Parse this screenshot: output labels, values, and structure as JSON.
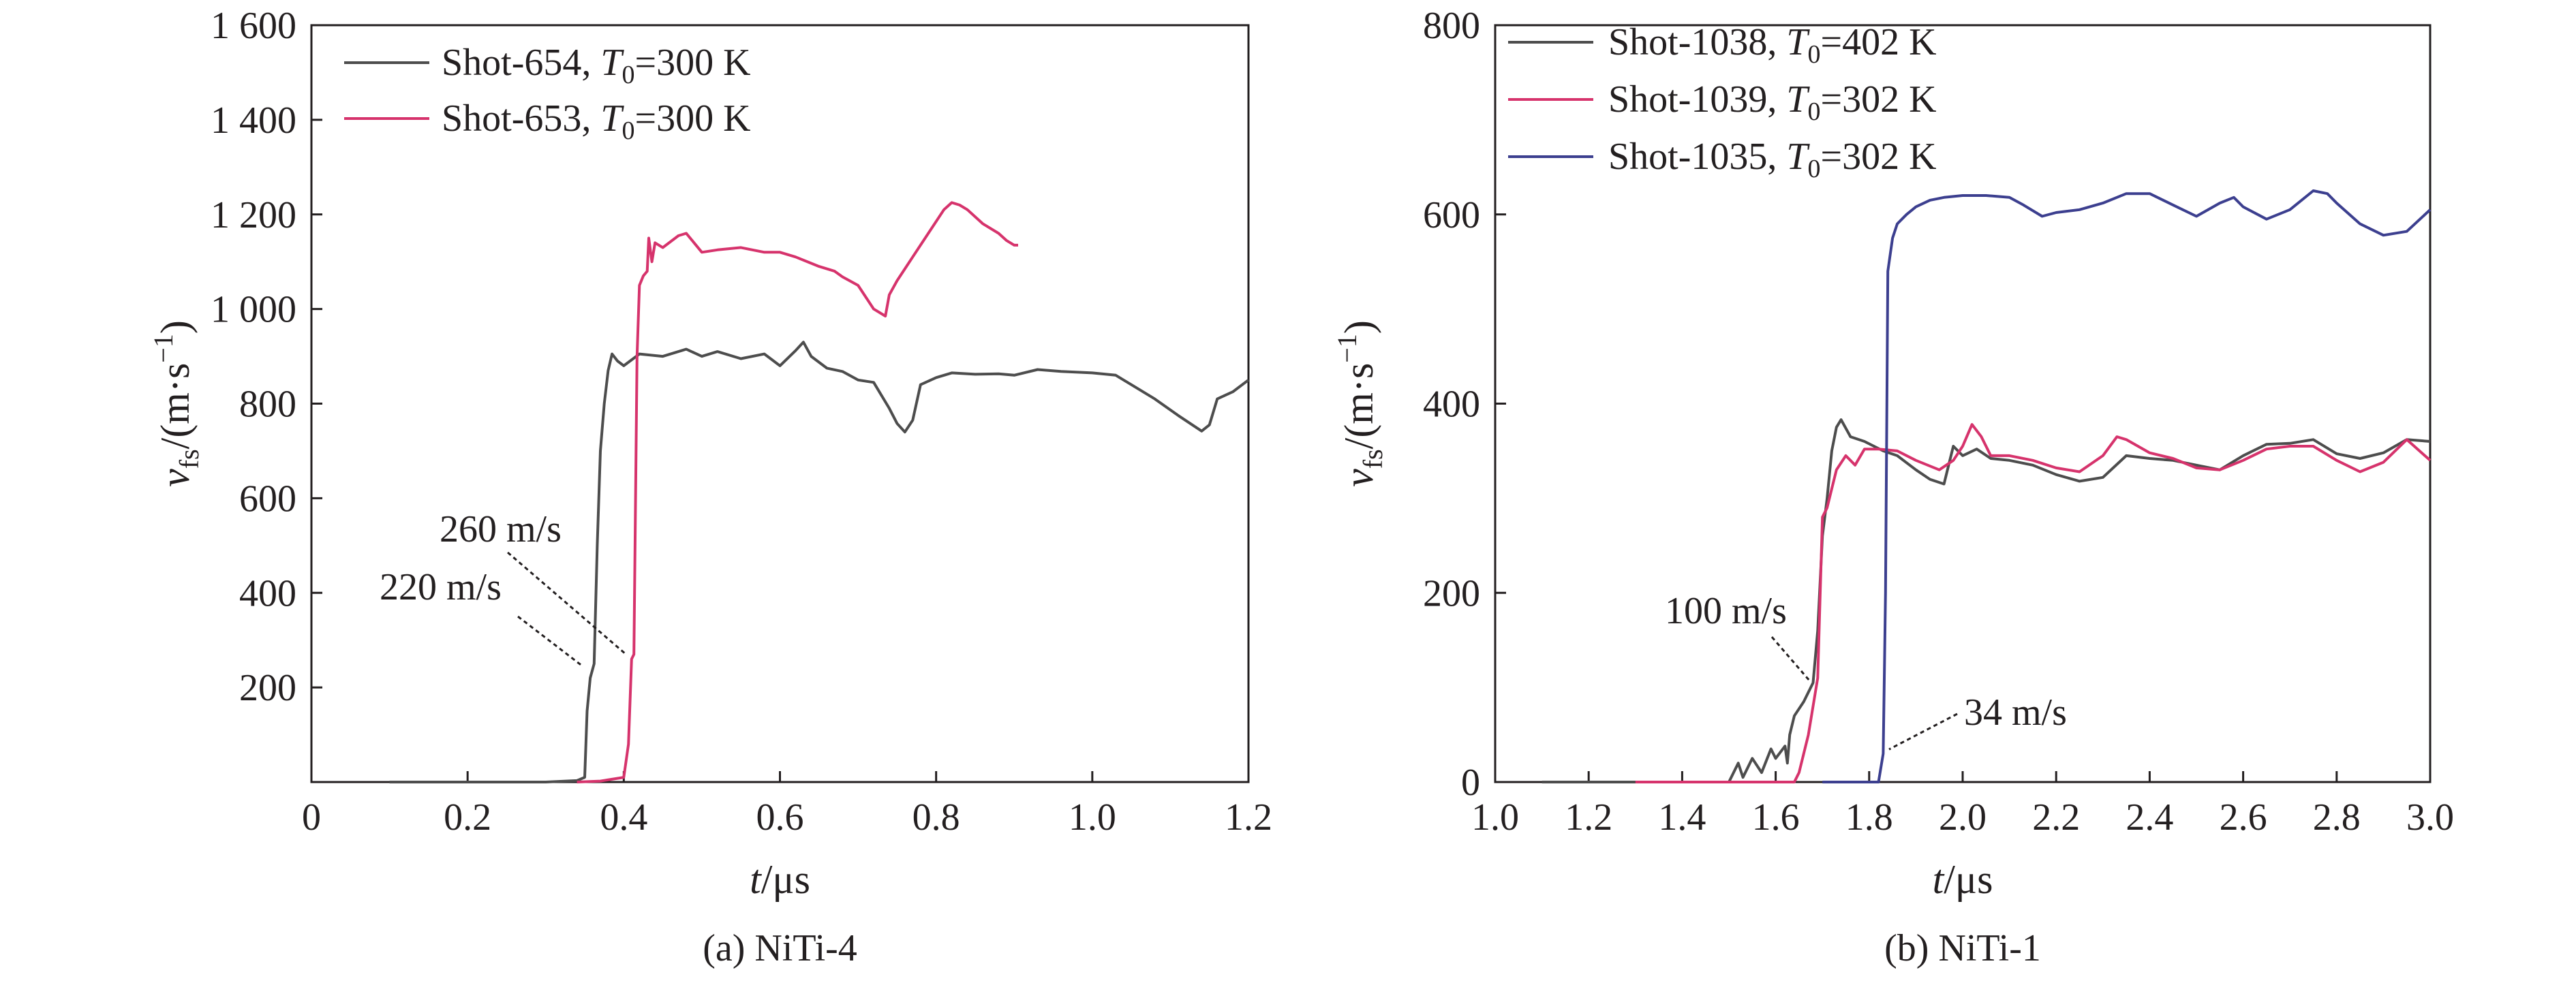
{
  "chart_data": [
    {
      "type": "line",
      "caption": "(a) NiTi-4",
      "xlabel": "t/μs",
      "ylabel": "v_fs/(m·s⁻¹)",
      "xlim": [
        0,
        1.2
      ],
      "ylim": [
        0,
        1600
      ],
      "xticks": [
        0,
        0.2,
        0.4,
        0.6,
        0.8,
        1.0,
        1.2
      ],
      "xtick_labels": [
        "0",
        "0.2",
        "0.4",
        "0.6",
        "0.8",
        "1.0",
        "1.2"
      ],
      "yticks": [
        200,
        400,
        600,
        800,
        1000,
        1200,
        1400,
        1600
      ],
      "ytick_labels": [
        "200",
        "400",
        "600",
        "800",
        "1 000",
        "1 200",
        "1 400",
        "1 600"
      ],
      "legend_position": "top-left",
      "series": [
        {
          "name": "Shot-654, T0=300 K",
          "legend_prefix": "Shot-654, ",
          "legend_var": "T",
          "legend_sub": "0",
          "legend_suffix": "=300 K",
          "color": "#4d4d4d",
          "points": [
            [
              0.1,
              0
            ],
            [
              0.2,
              0
            ],
            [
              0.3,
              0
            ],
            [
              0.34,
              3
            ],
            [
              0.35,
              10
            ],
            [
              0.353,
              150
            ],
            [
              0.357,
              220
            ],
            [
              0.362,
              250
            ],
            [
              0.366,
              500
            ],
            [
              0.37,
              700
            ],
            [
              0.375,
              800
            ],
            [
              0.38,
              870
            ],
            [
              0.385,
              905
            ],
            [
              0.392,
              890
            ],
            [
              0.4,
              880
            ],
            [
              0.42,
              905
            ],
            [
              0.45,
              900
            ],
            [
              0.48,
              915
            ],
            [
              0.5,
              900
            ],
            [
              0.52,
              910
            ],
            [
              0.55,
              895
            ],
            [
              0.58,
              905
            ],
            [
              0.6,
              880
            ],
            [
              0.62,
              912
            ],
            [
              0.63,
              930
            ],
            [
              0.64,
              900
            ],
            [
              0.66,
              875
            ],
            [
              0.68,
              868
            ],
            [
              0.7,
              850
            ],
            [
              0.72,
              845
            ],
            [
              0.74,
              790
            ],
            [
              0.75,
              758
            ],
            [
              0.76,
              740
            ],
            [
              0.77,
              765
            ],
            [
              0.78,
              840
            ],
            [
              0.8,
              855
            ],
            [
              0.82,
              865
            ],
            [
              0.85,
              862
            ],
            [
              0.88,
              863
            ],
            [
              0.9,
              860
            ],
            [
              0.93,
              872
            ],
            [
              0.96,
              868
            ],
            [
              1.0,
              865
            ],
            [
              1.03,
              860
            ],
            [
              1.05,
              840
            ],
            [
              1.08,
              810
            ],
            [
              1.11,
              775
            ],
            [
              1.14,
              742
            ],
            [
              1.15,
              755
            ],
            [
              1.16,
              810
            ],
            [
              1.18,
              825
            ],
            [
              1.2,
              850
            ]
          ]
        },
        {
          "name": "Shot-653, T0=300 K",
          "legend_prefix": "Shot-653, ",
          "legend_var": "T",
          "legend_sub": "0",
          "legend_suffix": "=300 K",
          "color": "#d6336c",
          "points": [
            [
              0.34,
              0
            ],
            [
              0.37,
              2
            ],
            [
              0.4,
              10
            ],
            [
              0.406,
              80
            ],
            [
              0.41,
              260
            ],
            [
              0.413,
              270
            ],
            [
              0.417,
              900
            ],
            [
              0.42,
              1050
            ],
            [
              0.425,
              1070
            ],
            [
              0.43,
              1080
            ],
            [
              0.432,
              1150
            ],
            [
              0.436,
              1100
            ],
            [
              0.44,
              1140
            ],
            [
              0.45,
              1130
            ],
            [
              0.47,
              1155
            ],
            [
              0.48,
              1160
            ],
            [
              0.5,
              1120
            ],
            [
              0.52,
              1125
            ],
            [
              0.55,
              1130
            ],
            [
              0.58,
              1120
            ],
            [
              0.6,
              1120
            ],
            [
              0.62,
              1110
            ],
            [
              0.65,
              1090
            ],
            [
              0.67,
              1080
            ],
            [
              0.68,
              1068
            ],
            [
              0.7,
              1050
            ],
            [
              0.72,
              1000
            ],
            [
              0.735,
              985
            ],
            [
              0.74,
              1030
            ],
            [
              0.75,
              1060
            ],
            [
              0.77,
              1110
            ],
            [
              0.79,
              1160
            ],
            [
              0.81,
              1210
            ],
            [
              0.82,
              1225
            ],
            [
              0.83,
              1220
            ],
            [
              0.84,
              1210
            ],
            [
              0.86,
              1180
            ],
            [
              0.88,
              1160
            ],
            [
              0.89,
              1145
            ],
            [
              0.9,
              1135
            ],
            [
              0.905,
              1135
            ]
          ]
        }
      ],
      "annotations": [
        {
          "text": "260 m/s",
          "x": 0.41,
          "y": 265
        },
        {
          "text": "220 m/s",
          "x": 0.355,
          "y": 235
        }
      ]
    },
    {
      "type": "line",
      "caption": "(b) NiTi-1",
      "xlabel": "t/μs",
      "ylabel": "v_fs/(m·s⁻¹)",
      "xlim": [
        1.0,
        3.0
      ],
      "ylim": [
        0,
        800
      ],
      "xticks": [
        1.0,
        1.2,
        1.4,
        1.6,
        1.8,
        2.0,
        2.2,
        2.4,
        2.6,
        2.8,
        3.0
      ],
      "xtick_labels": [
        "1.0",
        "1.2",
        "1.4",
        "1.6",
        "1.8",
        "2.0",
        "2.2",
        "2.4",
        "2.6",
        "2.8",
        "3.0"
      ],
      "yticks": [
        0,
        200,
        400,
        600,
        800
      ],
      "ytick_labels": [
        "0",
        "200",
        "400",
        "600",
        "800"
      ],
      "legend_position": "top-left",
      "series": [
        {
          "name": "Shot-1038, T0=402 K",
          "legend_prefix": "Shot-1038, ",
          "legend_var": "T",
          "legend_sub": "0",
          "legend_suffix": "=402 K",
          "color": "#4d4d4d",
          "points": [
            [
              1.1,
              0
            ],
            [
              1.3,
              0
            ],
            [
              1.5,
              0
            ],
            [
              1.52,
              20
            ],
            [
              1.53,
              5
            ],
            [
              1.55,
              25
            ],
            [
              1.57,
              10
            ],
            [
              1.59,
              35
            ],
            [
              1.6,
              25
            ],
            [
              1.62,
              38
            ],
            [
              1.625,
              20
            ],
            [
              1.63,
              50
            ],
            [
              1.64,
              70
            ],
            [
              1.66,
              85
            ],
            [
              1.68,
              105
            ],
            [
              1.69,
              160
            ],
            [
              1.7,
              260
            ],
            [
              1.71,
              300
            ],
            [
              1.72,
              350
            ],
            [
              1.73,
              375
            ],
            [
              1.74,
              383
            ],
            [
              1.76,
              365
            ],
            [
              1.79,
              360
            ],
            [
              1.83,
              350
            ],
            [
              1.86,
              345
            ],
            [
              1.9,
              330
            ],
            [
              1.93,
              320
            ],
            [
              1.96,
              315
            ],
            [
              1.98,
              355
            ],
            [
              2.0,
              345
            ],
            [
              2.03,
              352
            ],
            [
              2.06,
              342
            ],
            [
              2.1,
              340
            ],
            [
              2.15,
              335
            ],
            [
              2.2,
              325
            ],
            [
              2.25,
              318
            ],
            [
              2.3,
              322
            ],
            [
              2.35,
              345
            ],
            [
              2.4,
              342
            ],
            [
              2.45,
              340
            ],
            [
              2.5,
              335
            ],
            [
              2.55,
              330
            ],
            [
              2.6,
              345
            ],
            [
              2.65,
              357
            ],
            [
              2.7,
              358
            ],
            [
              2.75,
              362
            ],
            [
              2.8,
              347
            ],
            [
              2.85,
              342
            ],
            [
              2.9,
              348
            ],
            [
              2.95,
              362
            ],
            [
              3.0,
              360
            ]
          ]
        },
        {
          "name": "Shot-1039, T0=302 K",
          "legend_prefix": "Shot-1039, ",
          "legend_var": "T",
          "legend_sub": "0",
          "legend_suffix": "=302 K",
          "color": "#d6336c",
          "points": [
            [
              1.3,
              0
            ],
            [
              1.5,
              0
            ],
            [
              1.6,
              0
            ],
            [
              1.64,
              0
            ],
            [
              1.65,
              10
            ],
            [
              1.67,
              50
            ],
            [
              1.69,
              110
            ],
            [
              1.7,
              280
            ],
            [
              1.71,
              290
            ],
            [
              1.72,
              310
            ],
            [
              1.73,
              330
            ],
            [
              1.75,
              345
            ],
            [
              1.77,
              335
            ],
            [
              1.79,
              352
            ],
            [
              1.82,
              352
            ],
            [
              1.86,
              350
            ],
            [
              1.9,
              340
            ],
            [
              1.95,
              330
            ],
            [
              1.98,
              340
            ],
            [
              2.0,
              355
            ],
            [
              2.02,
              378
            ],
            [
              2.04,
              365
            ],
            [
              2.06,
              345
            ],
            [
              2.1,
              345
            ],
            [
              2.15,
              340
            ],
            [
              2.2,
              332
            ],
            [
              2.25,
              328
            ],
            [
              2.3,
              345
            ],
            [
              2.33,
              365
            ],
            [
              2.35,
              362
            ],
            [
              2.4,
              348
            ],
            [
              2.45,
              342
            ],
            [
              2.5,
              332
            ],
            [
              2.55,
              330
            ],
            [
              2.6,
              340
            ],
            [
              2.65,
              352
            ],
            [
              2.7,
              355
            ],
            [
              2.75,
              355
            ],
            [
              2.8,
              340
            ],
            [
              2.85,
              328
            ],
            [
              2.9,
              338
            ],
            [
              2.95,
              362
            ],
            [
              3.0,
              340
            ]
          ]
        },
        {
          "name": "Shot-1035, T0=302 K",
          "legend_prefix": "Shot-1035, ",
          "legend_var": "T",
          "legend_sub": "0",
          "legend_suffix": "=302 K",
          "color": "#3c3f8f",
          "points": [
            [
              1.7,
              0
            ],
            [
              1.8,
              0
            ],
            [
              1.82,
              0
            ],
            [
              1.83,
              30
            ],
            [
              1.835,
              200
            ],
            [
              1.84,
              540
            ],
            [
              1.85,
              575
            ],
            [
              1.86,
              590
            ],
            [
              1.88,
              600
            ],
            [
              1.9,
              608
            ],
            [
              1.93,
              615
            ],
            [
              1.96,
              618
            ],
            [
              2.0,
              620
            ],
            [
              2.05,
              620
            ],
            [
              2.1,
              618
            ],
            [
              2.13,
              610
            ],
            [
              2.17,
              598
            ],
            [
              2.2,
              602
            ],
            [
              2.25,
              605
            ],
            [
              2.3,
              612
            ],
            [
              2.35,
              622
            ],
            [
              2.4,
              622
            ],
            [
              2.45,
              610
            ],
            [
              2.5,
              598
            ],
            [
              2.55,
              612
            ],
            [
              2.58,
              618
            ],
            [
              2.6,
              608
            ],
            [
              2.65,
              595
            ],
            [
              2.7,
              605
            ],
            [
              2.75,
              625
            ],
            [
              2.78,
              622
            ],
            [
              2.8,
              612
            ],
            [
              2.85,
              590
            ],
            [
              2.9,
              578
            ],
            [
              2.95,
              582
            ],
            [
              3.0,
              605
            ]
          ]
        }
      ],
      "annotations": [
        {
          "text": "100 m/s",
          "x": 1.685,
          "y": 100
        },
        {
          "text": "34 m/s",
          "x": 1.835,
          "y": 34
        }
      ]
    }
  ]
}
